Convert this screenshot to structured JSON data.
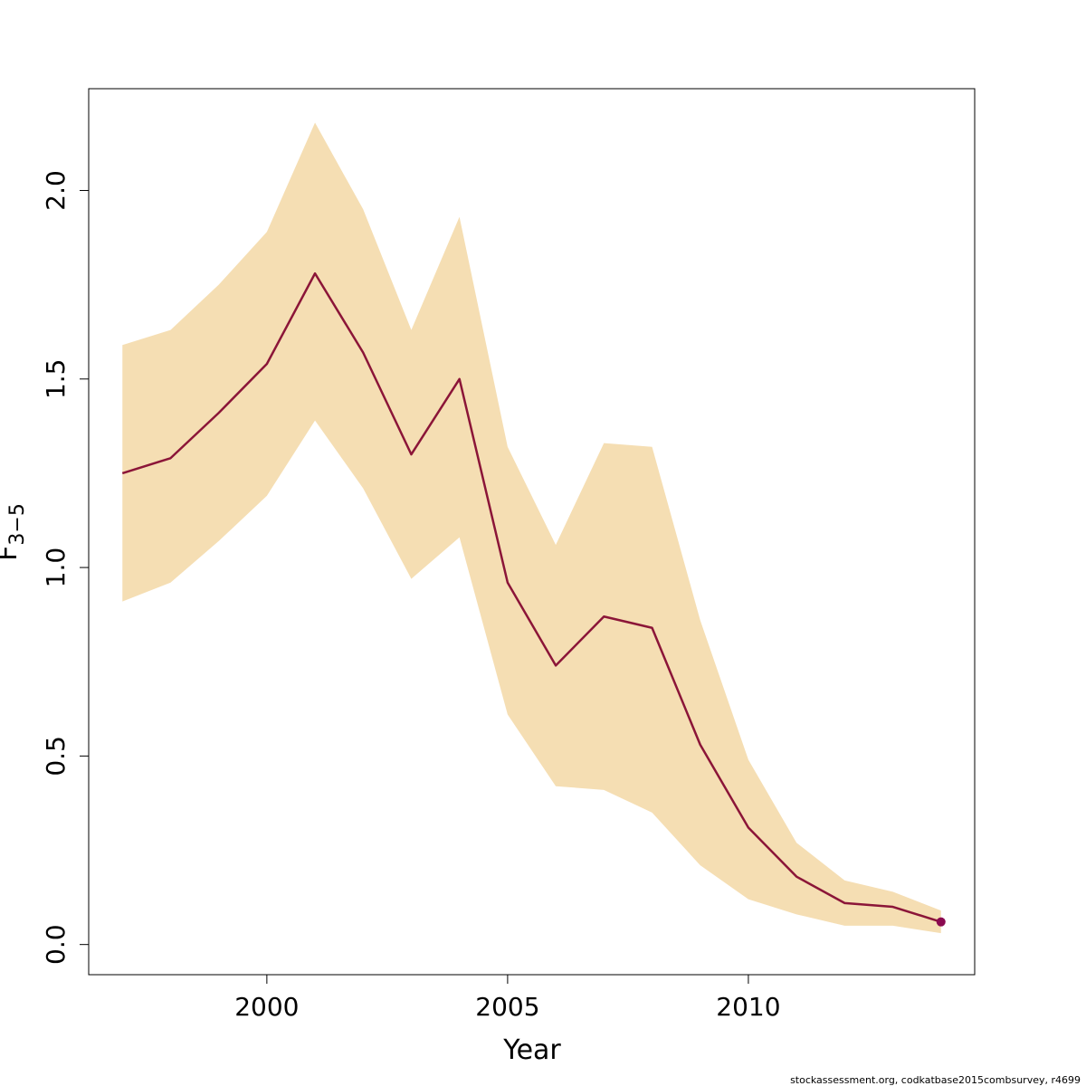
{
  "chart_data": {
    "type": "line",
    "xlabel": "Year",
    "ylabel_main": "F",
    "ylabel_sub": "3−5",
    "x_ticks": [
      2000,
      2005,
      2010
    ],
    "y_ticks": [
      "0.0",
      "0.5",
      "1.0",
      "1.5",
      "2.0"
    ],
    "xlim": [
      1996.3,
      2014.7
    ],
    "ylim": [
      -0.08,
      2.27
    ],
    "grid": false,
    "colors": {
      "band": "#f5deb3",
      "line": "#8b1538",
      "point": "#8b0a50"
    },
    "x": [
      1997,
      1998,
      1999,
      2000,
      2001,
      2002,
      2003,
      2004,
      2005,
      2006,
      2007,
      2008,
      2009,
      2010,
      2011,
      2012,
      2013,
      2014
    ],
    "estimate": [
      1.25,
      1.29,
      1.41,
      1.54,
      1.78,
      1.57,
      1.3,
      1.5,
      0.96,
      0.74,
      0.87,
      0.84,
      0.53,
      0.31,
      0.18,
      0.11,
      0.1,
      0.06
    ],
    "upper": [
      1.59,
      1.63,
      1.75,
      1.89,
      2.18,
      1.95,
      1.63,
      1.93,
      1.32,
      1.06,
      1.33,
      1.32,
      0.86,
      0.49,
      0.27,
      0.17,
      0.14,
      0.09
    ],
    "lower": [
      0.91,
      0.96,
      1.07,
      1.19,
      1.39,
      1.21,
      0.97,
      1.08,
      0.61,
      0.42,
      0.41,
      0.35,
      0.21,
      0.12,
      0.08,
      0.05,
      0.05,
      0.03
    ],
    "terminal_point": {
      "x": 2014,
      "y": 0.06
    }
  },
  "footer": "stockassessment.org, codkatbase2015combsurvey, r4699"
}
